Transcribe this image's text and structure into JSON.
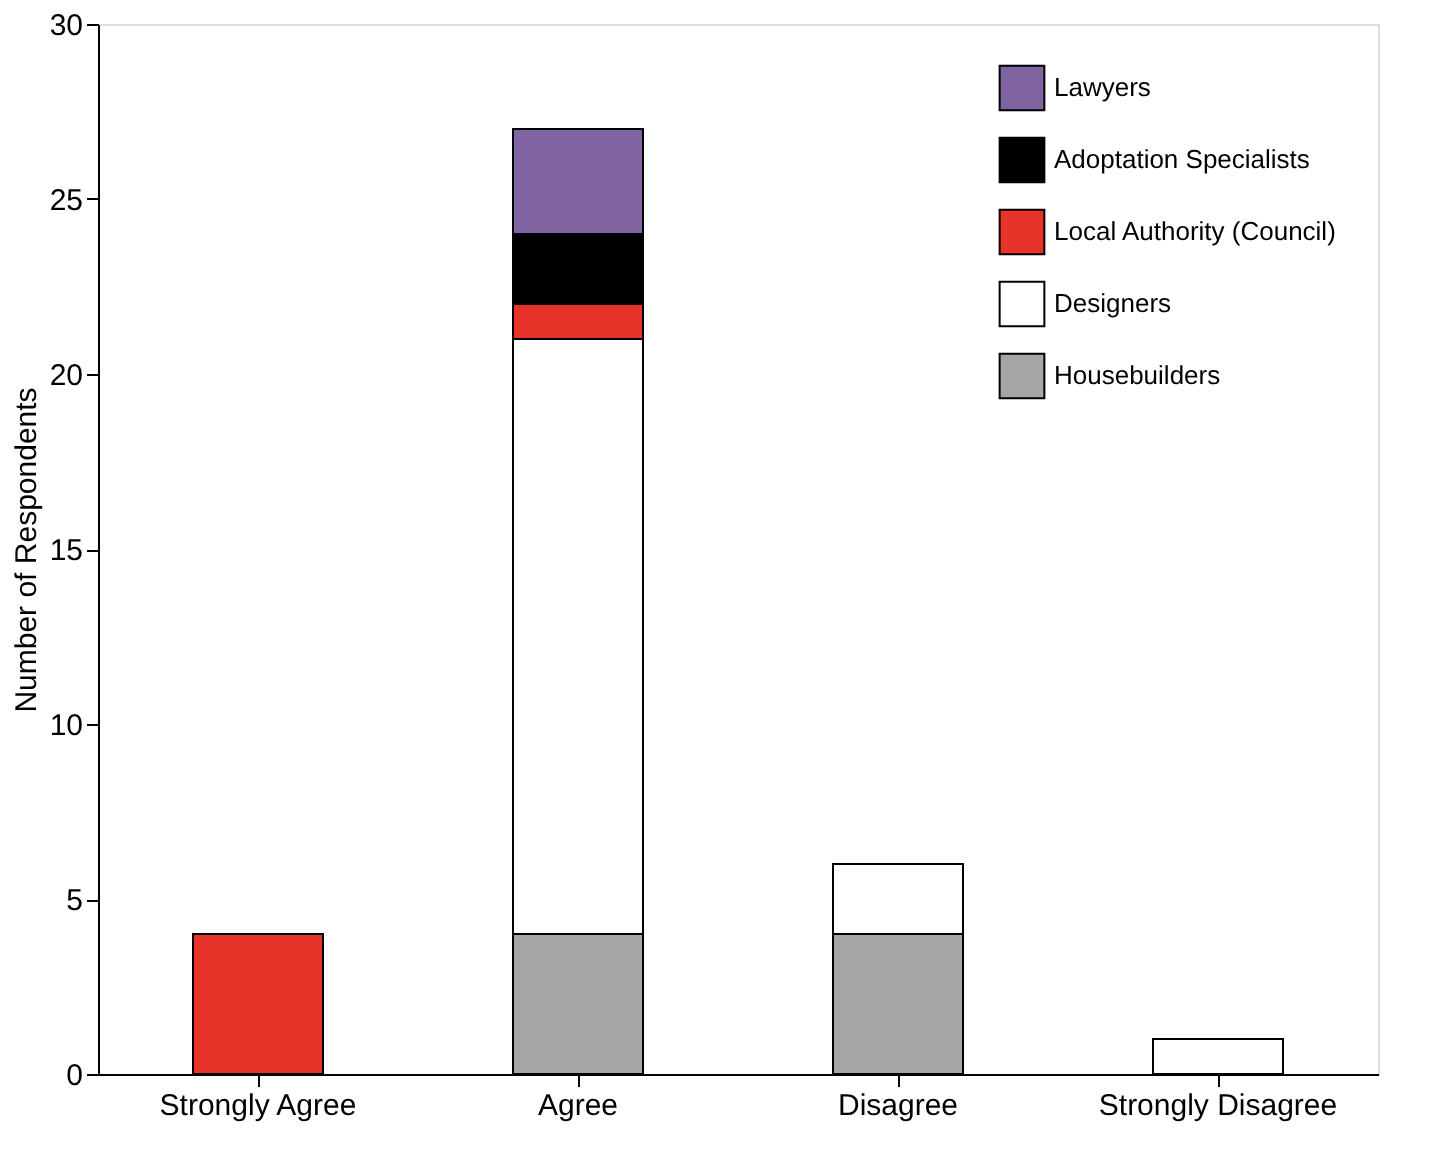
{
  "chart_data": {
    "type": "bar",
    "stacked": true,
    "ylabel": "Number of Respondents",
    "categories": [
      "Strongly Agree",
      "Agree",
      "Disagree",
      "Strongly Disagree"
    ],
    "series": [
      {
        "name": "Housebuilders",
        "color": "#a6a6a6",
        "values": [
          0,
          4,
          4,
          0
        ]
      },
      {
        "name": "Designers",
        "color": "#ffffff",
        "values": [
          0,
          17,
          2,
          1
        ]
      },
      {
        "name": "Local Authority (Council)",
        "color": "#e8332a",
        "values": [
          4,
          1,
          0,
          0
        ]
      },
      {
        "name": "Adoptation Specialists",
        "color": "#000000",
        "values": [
          0,
          2,
          0,
          0
        ]
      },
      {
        "name": "Lawyers",
        "color": "#8064a2",
        "values": [
          0,
          3,
          0,
          0
        ]
      }
    ],
    "ylim": [
      0,
      30
    ],
    "yticks": [
      0,
      5,
      10,
      15,
      20,
      25,
      30
    ],
    "grid": false,
    "legend": "top right"
  }
}
